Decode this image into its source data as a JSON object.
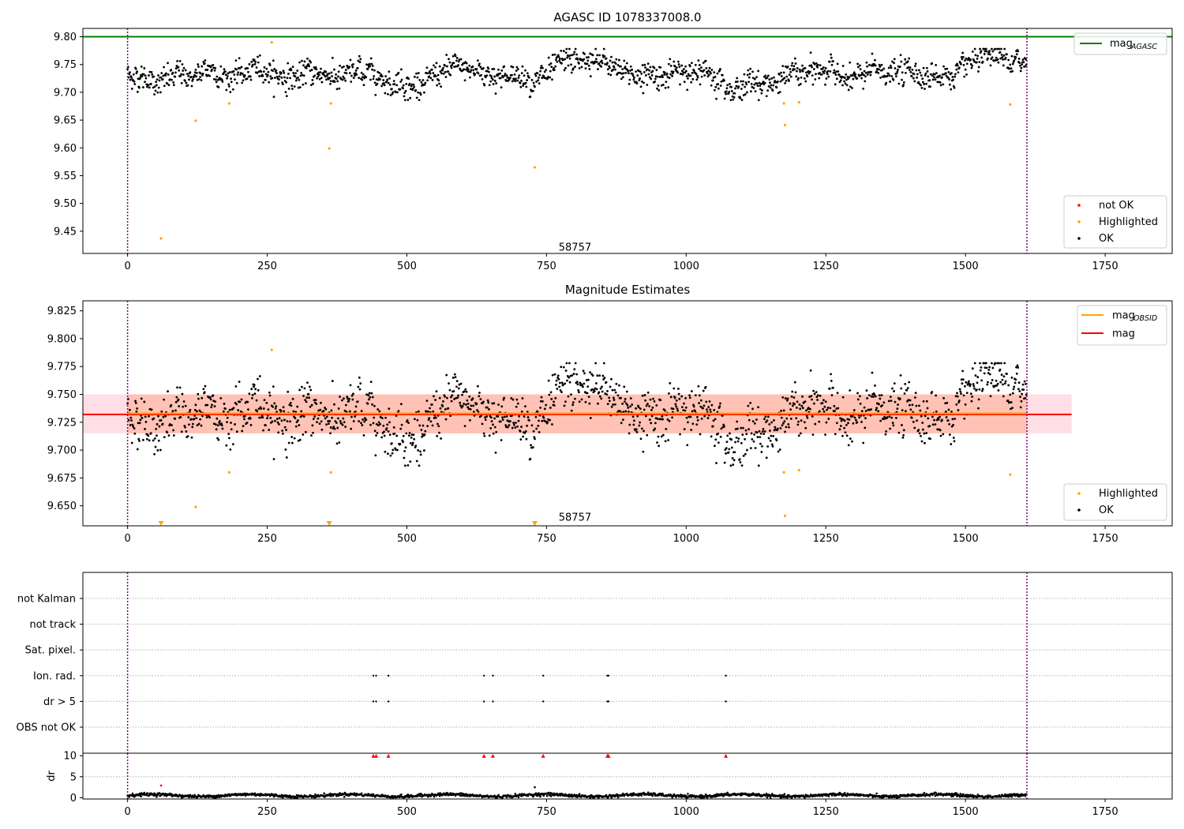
{
  "chart_data": [
    {
      "type": "scatter",
      "title": "AGASC ID 1078337008.0",
      "xlim": [
        -80,
        1870
      ],
      "ylim": [
        9.41,
        9.815
      ],
      "xticks": [
        0,
        250,
        500,
        750,
        1000,
        1250,
        1500,
        1750
      ],
      "yticks": [
        9.45,
        9.5,
        9.55,
        9.6,
        9.65,
        9.7,
        9.75,
        9.8
      ],
      "ytick_labels": [
        "9.45",
        "9.50",
        "9.55",
        "9.60",
        "9.65",
        "9.70",
        "9.75",
        "9.80"
      ],
      "grid": false,
      "vlines": [
        0,
        1610
      ],
      "vline_color": "#800080",
      "obsid_label": {
        "text": "58757",
        "x": 800,
        "y": 9.415
      },
      "mag_agasc": {
        "value": 9.8,
        "color": "#008000"
      },
      "ok_series": {
        "name": "OK",
        "color": "#000000",
        "n": 1610,
        "mean": 9.732,
        "scatter": 0.017
      },
      "highlighted": {
        "name": "Highlighted",
        "color": "#ffa500",
        "x": [
          60,
          122,
          182,
          258,
          361,
          364,
          729,
          1175,
          1177,
          1202,
          1580
        ],
        "y": [
          9.437,
          9.649,
          9.68,
          9.79,
          9.599,
          9.68,
          9.565,
          9.68,
          9.641,
          9.682,
          9.678
        ]
      },
      "legends": [
        {
          "position": "upper right",
          "entries": [
            {
              "label": "mag",
              "sub": "AGASC",
              "color": "#008000",
              "kind": "line"
            }
          ]
        },
        {
          "position": "lower right",
          "entries": [
            {
              "label": "not OK",
              "color": "#ff0000",
              "kind": "dot"
            },
            {
              "label": "Highlighted",
              "color": "#ffa500",
              "kind": "dot"
            },
            {
              "label": "OK",
              "color": "#000000",
              "kind": "dot"
            }
          ]
        }
      ]
    },
    {
      "type": "scatter",
      "title": "Magnitude Estimates",
      "xlim": [
        -80,
        1870
      ],
      "ylim": [
        9.632,
        9.834
      ],
      "xticks": [
        0,
        250,
        500,
        750,
        1000,
        1250,
        1500,
        1750
      ],
      "yticks": [
        9.65,
        9.675,
        9.7,
        9.725,
        9.75,
        9.775,
        9.8,
        9.825
      ],
      "ytick_labels": [
        "9.650",
        "9.675",
        "9.700",
        "9.725",
        "9.750",
        "9.775",
        "9.800",
        "9.825"
      ],
      "grid": false,
      "vlines": [
        0,
        1610
      ],
      "obsid_label": {
        "text": "58757",
        "x": 800,
        "y": 9.636
      },
      "mag": {
        "value": 9.732,
        "color": "#ff0000",
        "band": [
          9.715,
          9.75
        ],
        "extent": [
          -80,
          1690
        ],
        "band_color": "#ffc0cb"
      },
      "mag_obsid": {
        "value": 9.733,
        "color": "#ffa500",
        "band": [
          9.715,
          9.75
        ],
        "extent": [
          0,
          1610
        ],
        "band_color": "#ffa07a"
      },
      "highlighted": {
        "name": "Highlighted",
        "color": "#ffa500",
        "x": [
          122,
          182,
          258,
          364,
          1175,
          1177,
          1202,
          1580
        ],
        "y": [
          9.649,
          9.68,
          9.79,
          9.68,
          9.68,
          9.641,
          9.682,
          9.678
        ]
      },
      "off_scale": {
        "x": [
          60,
          361,
          729
        ],
        "color": "#ffa500"
      },
      "legends": [
        {
          "position": "upper right",
          "entries": [
            {
              "label": "mag",
              "sub": "OBSID",
              "color": "#ffa500",
              "kind": "line"
            },
            {
              "label": "mag",
              "sub": "",
              "color": "#ff0000",
              "kind": "line"
            }
          ]
        },
        {
          "position": "lower right",
          "entries": [
            {
              "label": "Highlighted",
              "color": "#ffa500",
              "kind": "dot"
            },
            {
              "label": "OK",
              "color": "#000000",
              "kind": "dot"
            }
          ]
        }
      ]
    },
    {
      "type": "scatter",
      "title": "",
      "xlim": [
        -80,
        1870
      ],
      "xticks": [
        0,
        250,
        500,
        750,
        1000,
        1250,
        1500,
        1750
      ],
      "categories": [
        "not Kalman",
        "not track",
        "Sat. pixel.",
        "Ion. rad.",
        "dr > 5",
        "OBS not OK"
      ],
      "flag_rows": {
        "Ion. rad.": [
          440,
          445,
          467,
          638,
          654,
          744,
          859,
          861,
          1071
        ],
        "dr > 5": [
          440,
          445,
          467,
          638,
          654,
          744,
          859,
          861,
          1071
        ]
      },
      "vlines": [
        0,
        1610
      ]
    },
    {
      "type": "scatter",
      "title": "",
      "xlim": [
        -80,
        1870
      ],
      "xticks": [
        0,
        250,
        500,
        750,
        1000,
        1250,
        1500,
        1750
      ],
      "ylim": [
        -0.3,
        10.6
      ],
      "yticks": [
        0,
        5,
        10
      ],
      "ylabel": "dr",
      "capped_points": {
        "x": [
          440,
          445,
          467,
          638,
          654,
          744,
          859,
          861,
          1071
        ],
        "y": 10,
        "color": "#ff0000"
      },
      "outliers": [
        {
          "x": 60,
          "y": 2.9,
          "color": "#ff0000"
        },
        {
          "x": 729,
          "y": 2.5,
          "color": "#000000"
        }
      ],
      "baseline": {
        "mean": 0.55,
        "scatter": 0.3
      },
      "vlines": [
        0,
        1610
      ]
    }
  ]
}
